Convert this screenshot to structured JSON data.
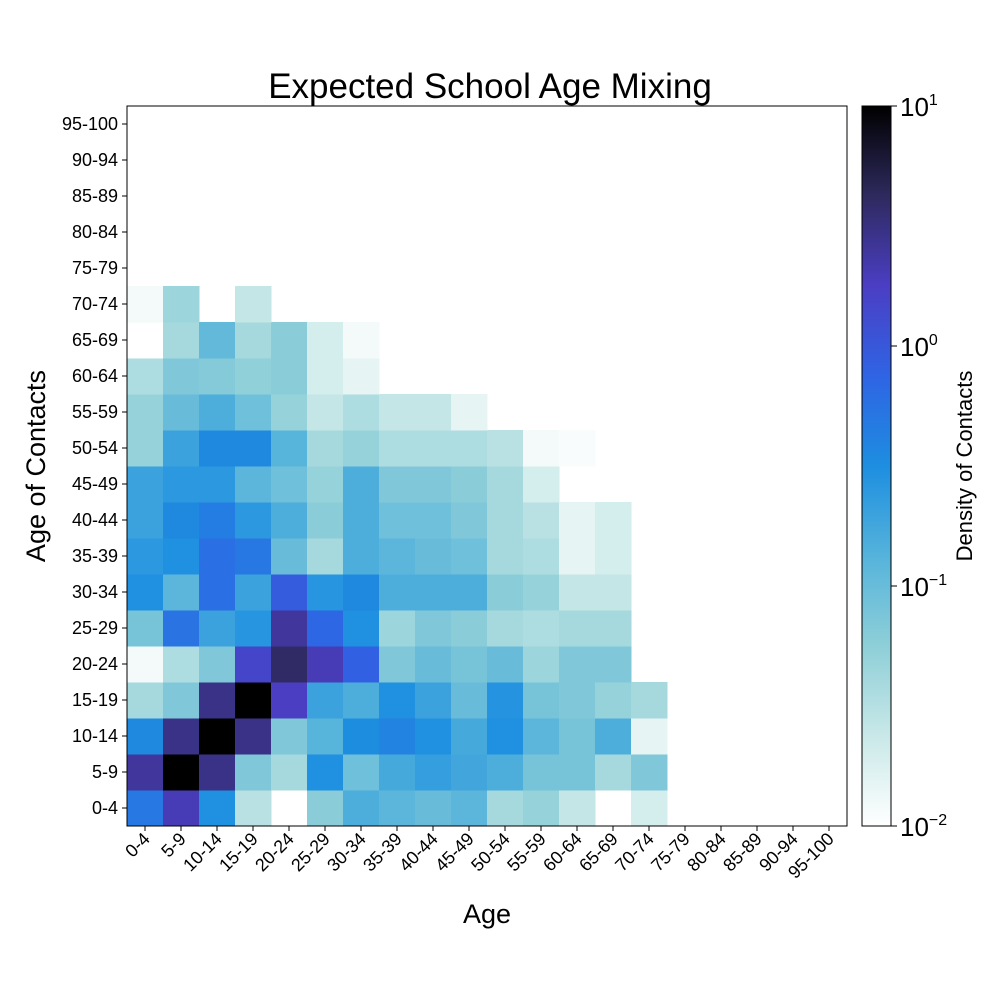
{
  "chart_data": {
    "type": "heatmap",
    "title": "Expected School Age Mixing",
    "xlabel": "Age",
    "ylabel": "Age of Contacts",
    "x_categories": [
      "0-4",
      "5-9",
      "10-14",
      "15-19",
      "20-24",
      "25-29",
      "30-34",
      "35-39",
      "40-44",
      "45-49",
      "50-54",
      "55-59",
      "60-64",
      "65-69",
      "70-74",
      "75-79",
      "80-84",
      "85-89",
      "90-94",
      "95-100"
    ],
    "y_categories": [
      "0-4",
      "5-9",
      "10-14",
      "15-19",
      "20-24",
      "25-29",
      "30-34",
      "35-39",
      "40-44",
      "45-49",
      "50-54",
      "55-59",
      "60-64",
      "65-69",
      "70-74",
      "75-79",
      "80-84",
      "85-89",
      "90-94",
      "95-100"
    ],
    "color_scale": "log",
    "color_range": [
      0.01,
      10
    ],
    "colorbar": {
      "label": "Density of Contacts",
      "ticks": [
        {
          "value": 10,
          "base": "10",
          "exp": "1"
        },
        {
          "value": 1,
          "base": "10",
          "exp": "0"
        },
        {
          "value": 0.1,
          "base": "10",
          "exp": "−1"
        },
        {
          "value": 0.01,
          "base": "10",
          "exp": "−2"
        }
      ]
    },
    "colormap": [
      "#ffffff",
      "#c9e8e8",
      "#8ecfd8",
      "#55b3db",
      "#1d8ee0",
      "#2f64e4",
      "#4b3ec4",
      "#2e2a5e",
      "#000000"
    ],
    "values": [
      [
        0.5,
        2,
        0.3,
        0.03,
        null,
        0.06,
        0.15,
        0.12,
        0.1,
        0.12,
        0.04,
        0.05,
        0.025,
        null,
        0.02,
        null,
        null,
        null,
        null,
        null
      ],
      [
        2.5,
        10,
        3,
        0.07,
        0.04,
        0.3,
        0.09,
        0.17,
        0.22,
        0.18,
        0.15,
        0.08,
        0.08,
        0.04,
        0.07,
        null,
        null,
        null,
        null,
        null
      ],
      [
        0.35,
        3,
        10,
        3,
        0.07,
        0.13,
        0.32,
        0.4,
        0.3,
        0.17,
        0.3,
        0.12,
        0.08,
        0.15,
        0.015,
        null,
        null,
        null,
        null,
        null
      ],
      [
        0.04,
        0.07,
        3,
        10,
        1.8,
        0.2,
        0.15,
        0.3,
        0.2,
        0.1,
        0.28,
        0.08,
        0.07,
        0.05,
        0.04,
        null,
        null,
        null,
        null,
        null
      ],
      [
        0.012,
        0.035,
        0.07,
        1.5,
        4,
        2,
        0.8,
        0.07,
        0.1,
        0.08,
        0.1,
        0.045,
        0.07,
        0.07,
        null,
        null,
        null,
        null,
        null,
        null
      ],
      [
        0.08,
        0.55,
        0.2,
        0.27,
        2.5,
        0.7,
        0.3,
        0.045,
        0.07,
        0.06,
        0.04,
        0.035,
        0.04,
        0.04,
        null,
        null,
        null,
        null,
        null,
        null
      ],
      [
        0.3,
        0.12,
        0.6,
        0.2,
        0.9,
        0.27,
        0.35,
        0.15,
        0.15,
        0.15,
        0.06,
        0.05,
        0.025,
        0.025,
        null,
        null,
        null,
        null,
        null,
        null
      ],
      [
        0.25,
        0.3,
        0.6,
        0.5,
        0.1,
        0.04,
        0.15,
        0.12,
        0.1,
        0.09,
        0.04,
        0.035,
        0.015,
        0.02,
        null,
        null,
        null,
        null,
        null,
        null
      ],
      [
        0.2,
        0.35,
        0.45,
        0.25,
        0.15,
        0.06,
        0.15,
        0.09,
        0.09,
        0.07,
        0.04,
        0.03,
        0.015,
        0.02,
        null,
        null,
        null,
        null,
        null,
        null
      ],
      [
        0.2,
        0.25,
        0.25,
        0.12,
        0.09,
        0.05,
        0.15,
        0.07,
        0.07,
        0.06,
        0.04,
        0.02,
        null,
        null,
        null,
        null,
        null,
        null,
        null,
        null
      ],
      [
        0.05,
        0.2,
        0.35,
        0.35,
        0.13,
        0.04,
        0.05,
        0.035,
        0.035,
        0.035,
        0.03,
        0.012,
        0.011,
        null,
        null,
        null,
        null,
        null,
        null,
        null
      ],
      [
        0.05,
        0.1,
        0.15,
        0.09,
        0.05,
        0.025,
        0.035,
        0.025,
        0.025,
        0.015,
        null,
        null,
        null,
        null,
        null,
        null,
        null,
        null,
        null,
        null
      ],
      [
        0.035,
        0.07,
        0.065,
        0.055,
        0.06,
        0.02,
        0.015,
        null,
        null,
        null,
        null,
        null,
        null,
        null,
        null,
        null,
        null,
        null,
        null,
        null
      ],
      [
        0.01,
        0.04,
        0.11,
        0.04,
        0.06,
        0.02,
        0.012,
        null,
        null,
        null,
        null,
        null,
        null,
        null,
        null,
        null,
        null,
        null,
        null,
        null
      ],
      [
        0.012,
        0.045,
        null,
        0.025,
        null,
        null,
        null,
        null,
        null,
        null,
        null,
        null,
        null,
        null,
        null,
        null,
        null,
        null,
        null,
        null
      ],
      [
        null,
        null,
        null,
        null,
        null,
        null,
        null,
        null,
        null,
        null,
        null,
        null,
        null,
        null,
        null,
        null,
        null,
        null,
        null,
        null
      ],
      [
        null,
        null,
        null,
        null,
        null,
        null,
        null,
        null,
        null,
        null,
        null,
        null,
        null,
        null,
        null,
        null,
        null,
        null,
        null,
        null
      ],
      [
        null,
        null,
        null,
        null,
        null,
        null,
        null,
        null,
        null,
        null,
        null,
        null,
        null,
        null,
        null,
        null,
        null,
        null,
        null,
        null
      ],
      [
        null,
        null,
        null,
        null,
        null,
        null,
        null,
        null,
        null,
        null,
        null,
        null,
        null,
        null,
        null,
        null,
        null,
        null,
        null,
        null
      ],
      [
        null,
        null,
        null,
        null,
        null,
        null,
        null,
        null,
        null,
        null,
        null,
        null,
        null,
        null,
        null,
        null,
        null,
        null,
        null,
        null
      ]
    ]
  }
}
